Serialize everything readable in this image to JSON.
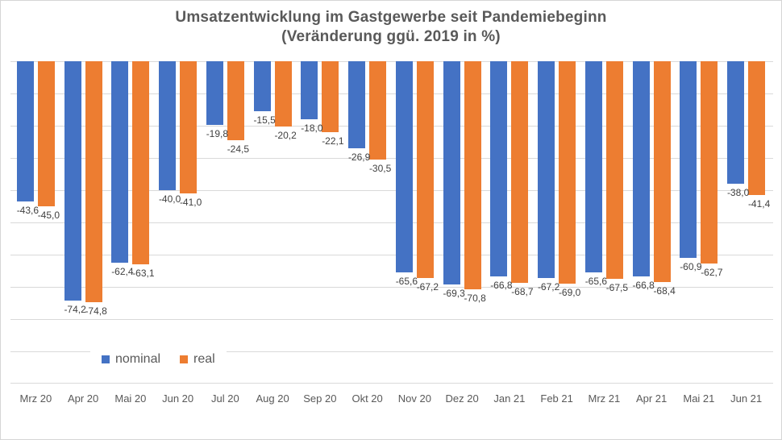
{
  "title": {
    "line1": "Umsatzentwicklung im Gastgewerbe seit Pandemiebeginn",
    "line2": "(Veränderung ggü. 2019 in %)"
  },
  "chart_data": {
    "type": "bar",
    "title": "Umsatzentwicklung im Gastgewerbe seit Pandemiebeginn (Veränderung ggü. 2019 in %)",
    "xlabel": "",
    "ylabel": "",
    "categories": [
      "Mrz 20",
      "Apr 20",
      "Mai 20",
      "Jun 20",
      "Jul 20",
      "Aug 20",
      "Sep 20",
      "Okt 20",
      "Nov 20",
      "Dez 20",
      "Jan 21",
      "Feb 21",
      "Mrz 21",
      "Apr 21",
      "Mai 21",
      "Jun 21"
    ],
    "series": [
      {
        "name": "nominal",
        "color": "#4472C4",
        "values": [
          -43.6,
          -74.2,
          -62.4,
          -40.0,
          -19.8,
          -15.5,
          -18.0,
          -26.9,
          -65.6,
          -69.3,
          -66.8,
          -67.2,
          -65.6,
          -66.8,
          -60.9,
          -38.0
        ]
      },
      {
        "name": "real",
        "color": "#ED7D31",
        "values": [
          -45.0,
          -74.8,
          -63.1,
          -41.0,
          -24.5,
          -20.2,
          -22.1,
          -30.5,
          -67.2,
          -70.8,
          -68.7,
          -69.0,
          -67.5,
          -68.4,
          -62.7,
          -41.4
        ]
      }
    ],
    "ylim": [
      -100,
      0
    ],
    "gridline_step": 10,
    "grid": true,
    "legend_position": "bottom-left-overlay",
    "value_labels_shown": true,
    "decimal_separator": ","
  },
  "legend": {
    "items": [
      {
        "label": "nominal",
        "color": "#4472C4"
      },
      {
        "label": "real",
        "color": "#ED7D31"
      }
    ]
  },
  "colors": {
    "background": "#FFFFFF",
    "border": "#D6D6D6",
    "gridline": "#D9D9D9",
    "title_text": "#595959",
    "axis_text": "#595959",
    "value_label_text": "#404040"
  }
}
